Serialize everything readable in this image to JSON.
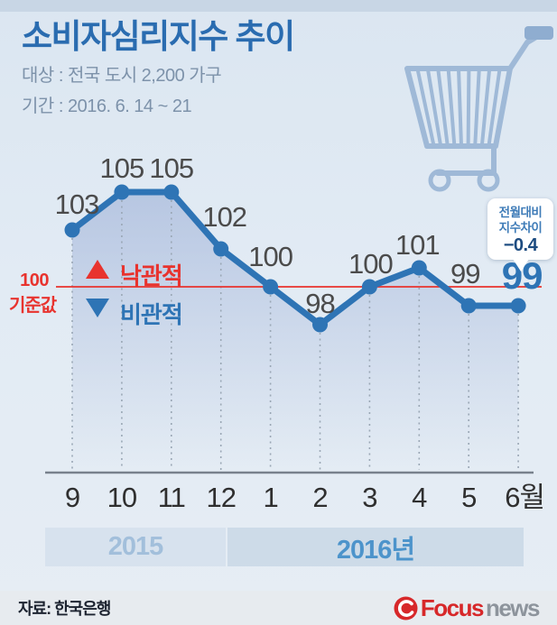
{
  "header": {
    "title": "소비자심리지수 추이",
    "subtitle_target": "대상 : 전국 도시 2,200 가구",
    "subtitle_period": "기간 : 2016. 6. 14 ~ 21"
  },
  "chart_data": {
    "type": "line",
    "title": "소비자심리지수 추이",
    "categories": [
      "9",
      "10",
      "11",
      "12",
      "1",
      "2",
      "3",
      "4",
      "5",
      "6월"
    ],
    "values": [
      103,
      105,
      105,
      102,
      100,
      98,
      100,
      101,
      99,
      99
    ],
    "ylim": [
      92,
      108
    ],
    "baseline_value": 100,
    "grid": "vertical-dotted",
    "legend_position": "inside-left",
    "line_color": "#2e74b5",
    "baseline_color": "#e8332e",
    "year_bands": [
      {
        "label": "2015",
        "categories": [
          "9",
          "10",
          "11",
          "12"
        ]
      },
      {
        "label": "2016년",
        "categories": [
          "1",
          "2",
          "3",
          "4",
          "5",
          "6월"
        ]
      }
    ],
    "annotation": {
      "text": "전월대비 지수차이",
      "value": "−0.4",
      "applies_to": "6월"
    }
  },
  "legend": {
    "optimistic": "낙관적",
    "pessimistic": "비관적"
  },
  "baseline": {
    "value": "100",
    "label": "기준값"
  },
  "callout": {
    "line1": "전월대비",
    "line2": "지수차이",
    "value": "−0.4"
  },
  "years": {
    "y2015": "2015",
    "y2016": "2016년"
  },
  "footer": {
    "source": "자료: 한국은행",
    "logo_focus": "Focus",
    "logo_news": "news"
  }
}
